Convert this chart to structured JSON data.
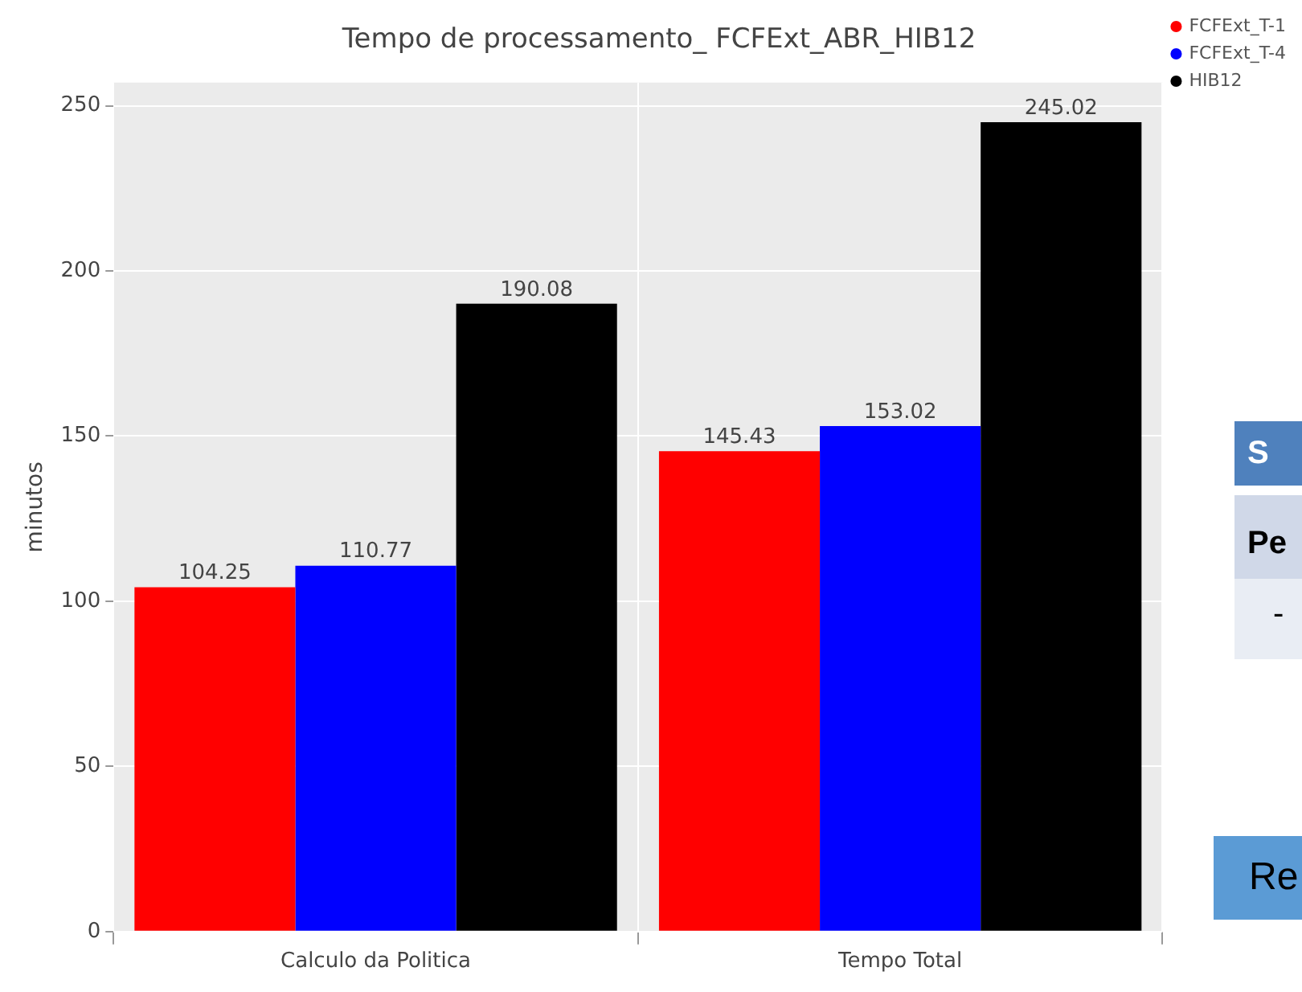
{
  "chart_data": {
    "type": "bar",
    "title": "Tempo de processamento_ FCFExt_ABR_HIB12",
    "ylabel": "minutos",
    "categories": [
      "Calculo da Politica",
      "Tempo Total"
    ],
    "series": [
      {
        "name": "FCFExt_T-1",
        "color": "#ff0000",
        "values": [
          104.25,
          145.43
        ]
      },
      {
        "name": "FCFExt_T-4",
        "color": "#0000ff",
        "values": [
          110.77,
          153.02
        ]
      },
      {
        "name": "HIB12",
        "color": "#000000",
        "values": [
          190.08,
          245.02
        ]
      }
    ],
    "ylim": [
      0,
      257
    ],
    "yticks": [
      0,
      50,
      100,
      150,
      200,
      250
    ],
    "grid": true,
    "legend": "top right",
    "data_labels": true,
    "annotations": [
      "S",
      "Pe",
      "-",
      "Re"
    ]
  }
}
